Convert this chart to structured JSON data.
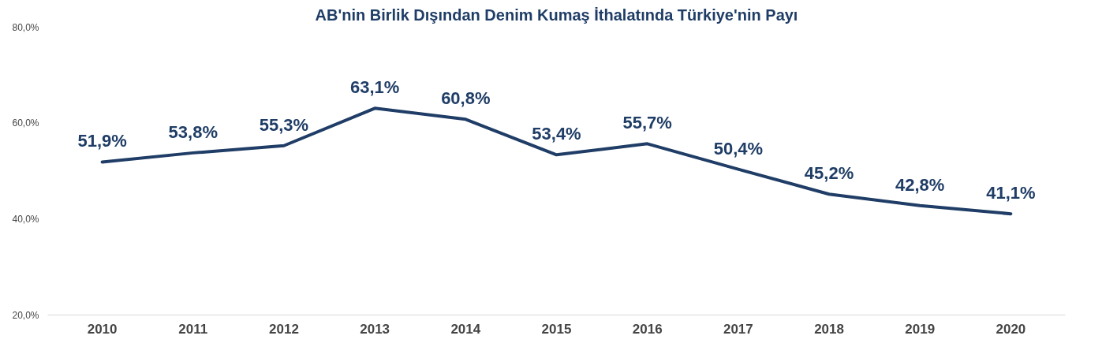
{
  "chart_data": {
    "type": "line",
    "title": "AB'nin Birlik Dışından Denim Kumaş İthalatında Türkiye'nin Payı",
    "categories": [
      "2010",
      "2011",
      "2012",
      "2013",
      "2014",
      "2015",
      "2016",
      "2017",
      "2018",
      "2019",
      "2020"
    ],
    "series": [
      {
        "color": "#1f3d66",
        "values": [
          51.9,
          53.8,
          55.3,
          63.1,
          60.8,
          53.4,
          55.7,
          50.4,
          45.2,
          42.8,
          41.1
        ],
        "value_labels": [
          "51,9%",
          "53,8%",
          "55,3%",
          "63,1%",
          "60,8%",
          "53,4%",
          "55,7%",
          "50,4%",
          "45,2%",
          "42,8%",
          "41,1%"
        ]
      }
    ],
    "ylim": [
      20,
      80
    ],
    "yticks": [
      {
        "value": 20,
        "label": "20,0%"
      },
      {
        "value": 40,
        "label": "40,0%"
      },
      {
        "value": 60,
        "label": "60,0%"
      },
      {
        "value": 80,
        "label": "80,0%"
      }
    ],
    "grid": false,
    "marker": "none",
    "line_style": "solid"
  }
}
